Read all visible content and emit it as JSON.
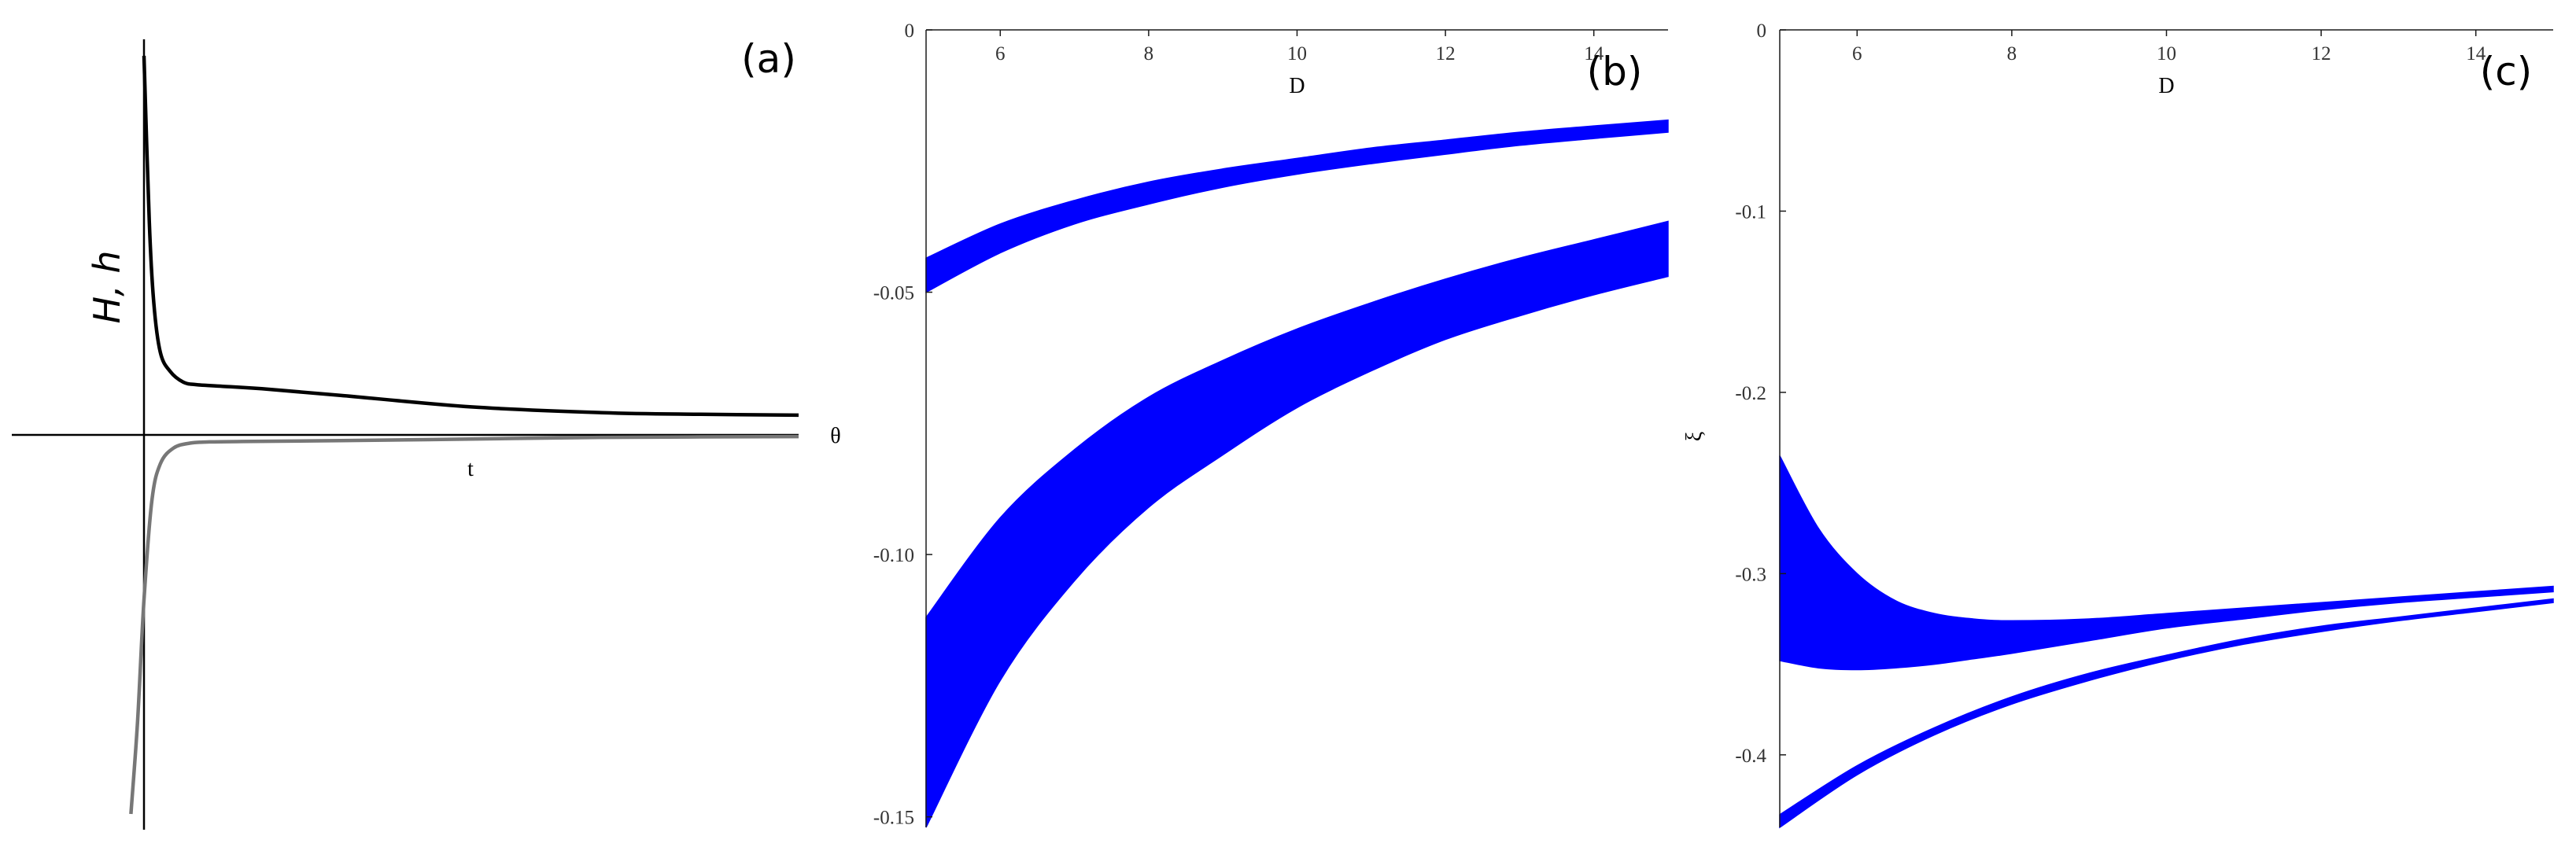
{
  "chart_data": [
    {
      "panel": "(a)",
      "type": "line",
      "xlabel": "t",
      "ylabel": "H, h",
      "axis_side_label": "θ",
      "ticks_x": [],
      "ticks_y": [],
      "series": [
        {
          "color": "#000000",
          "x": [
            0.0,
            0.008,
            0.015,
            0.025,
            0.04,
            0.06,
            0.08,
            0.12,
            0.18,
            0.3,
            0.5,
            0.7,
            0.85,
            1.0
          ],
          "y": [
            4.6,
            2.6,
            1.6,
            1.0,
            0.77,
            0.64,
            0.61,
            0.59,
            0.56,
            0.48,
            0.34,
            0.27,
            0.25,
            0.24
          ]
        },
        {
          "color": "#777777",
          "x": [
            -0.02,
            -0.01,
            0.0,
            0.012,
            0.025,
            0.045,
            0.07,
            0.1,
            0.15,
            0.3,
            0.5,
            0.7,
            1.0
          ],
          "y": [
            -4.6,
            -3.5,
            -2.0,
            -0.8,
            -0.35,
            -0.16,
            -0.1,
            -0.085,
            -0.08,
            -0.07,
            -0.05,
            -0.03,
            -0.02
          ]
        }
      ],
      "xlim": [
        -0.17,
        1.0
      ],
      "ylim": [
        -4.8,
        4.8
      ]
    },
    {
      "panel": "(b)",
      "type": "area",
      "xlabel": "D",
      "ylabel": "θ",
      "x_ticks": [
        "6",
        "8",
        "10",
        "12",
        "14"
      ],
      "y_ticks": [
        "0",
        "-0.05",
        "-0.10",
        "-0.15"
      ],
      "xlim": [
        5,
        15
      ],
      "ylim": [
        -0.152,
        0
      ],
      "series": [
        {
          "color": "#0000ff",
          "x": [
            5,
            6,
            7,
            8,
            9,
            10,
            11,
            12,
            13,
            14,
            15
          ],
          "upper": [
            -0.0435,
            -0.037,
            -0.0325,
            -0.029,
            -0.0265,
            -0.0245,
            -0.0225,
            -0.021,
            -0.0195,
            -0.0183,
            -0.0172
          ],
          "lower": [
            -0.05,
            -0.0425,
            -0.037,
            -0.0332,
            -0.03,
            -0.0275,
            -0.0255,
            -0.0237,
            -0.022,
            -0.0207,
            -0.0195
          ]
        },
        {
          "color": "#0000ff",
          "x": [
            5,
            6,
            7,
            8,
            9,
            10,
            11,
            12,
            13,
            14,
            15
          ],
          "upper": [
            -0.112,
            -0.093,
            -0.08,
            -0.07,
            -0.063,
            -0.057,
            -0.052,
            -0.0475,
            -0.0435,
            -0.04,
            -0.0365
          ],
          "lower": [
            -0.152,
            -0.124,
            -0.105,
            -0.091,
            -0.081,
            -0.072,
            -0.065,
            -0.059,
            -0.0545,
            -0.0505,
            -0.047
          ]
        }
      ]
    },
    {
      "panel": "(c)",
      "type": "area",
      "xlabel": "D",
      "ylabel": "ξ",
      "x_ticks": [
        "6",
        "8",
        "10",
        "12",
        "14"
      ],
      "y_ticks": [
        "0",
        "-0.1",
        "-0.2",
        "-0.3",
        "-0.4"
      ],
      "xlim": [
        5,
        15
      ],
      "ylim": [
        -0.44,
        0
      ],
      "series": [
        {
          "color": "#0000ff",
          "x": [
            5,
            5.5,
            6,
            6.5,
            7,
            7.5,
            8,
            9,
            10,
            11,
            12,
            13,
            14,
            15
          ],
          "upper": [
            -0.235,
            -0.275,
            -0.3,
            -0.315,
            -0.322,
            -0.325,
            -0.326,
            -0.325,
            -0.322,
            -0.319,
            -0.316,
            -0.313,
            -0.31,
            -0.307
          ],
          "lower": [
            -0.348,
            -0.352,
            -0.353,
            -0.352,
            -0.35,
            -0.347,
            -0.344,
            -0.337,
            -0.33,
            -0.325,
            -0.32,
            -0.316,
            -0.313,
            -0.31
          ]
        },
        {
          "color": "#0000ff",
          "x": [
            5,
            6,
            7,
            8,
            9,
            10,
            11,
            12,
            13,
            14,
            15
          ],
          "upper": [
            -0.433,
            -0.406,
            -0.385,
            -0.368,
            -0.355,
            -0.345,
            -0.336,
            -0.329,
            -0.324,
            -0.319,
            -0.314
          ],
          "lower": [
            -0.44,
            -0.411,
            -0.389,
            -0.372,
            -0.359,
            -0.348,
            -0.339,
            -0.332,
            -0.326,
            -0.321,
            -0.316
          ]
        }
      ]
    }
  ]
}
